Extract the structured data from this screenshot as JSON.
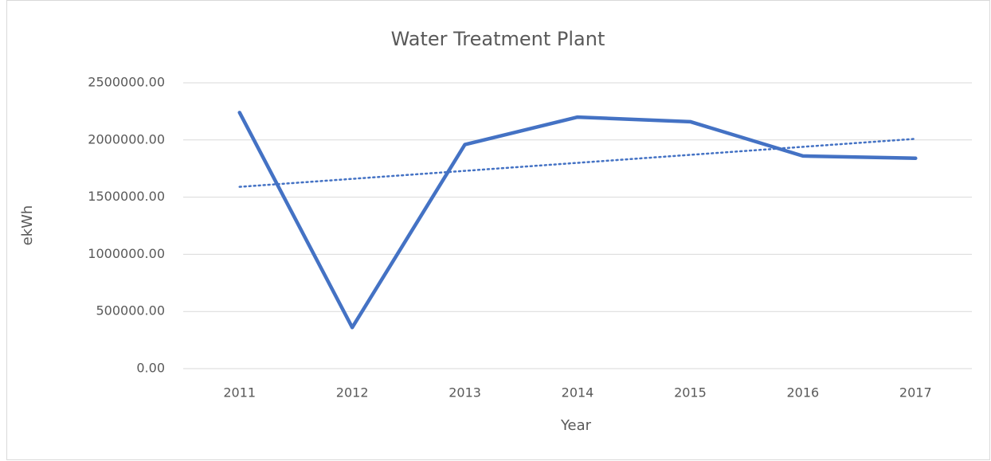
{
  "chart_data": {
    "type": "line",
    "title": "Water Treatment Plant",
    "x_label": "Year",
    "y_label": "ekWh",
    "categories": [
      "2011",
      "2012",
      "2013",
      "2014",
      "2015",
      "2016",
      "2017"
    ],
    "series": [
      {
        "name": "ekWh",
        "color": "#4472c4",
        "dash": "solid",
        "values": [
          2240000,
          360000,
          1960000,
          2200000,
          2160000,
          1860000,
          1840000
        ]
      },
      {
        "color": "#4472c4",
        "dash": "dotted",
        "values": [
          1590000,
          1660000,
          1730000,
          1800000,
          1870000,
          1940000,
          2010000
        ]
      }
    ],
    "ylim": [
      0,
      2500000
    ],
    "yticks": [
      {
        "value": 0,
        "label": "0.00"
      },
      {
        "value": 500000,
        "label": "500000.00"
      },
      {
        "value": 1000000,
        "label": "1000000.00"
      },
      {
        "value": 1500000,
        "label": "1500000.00"
      },
      {
        "value": 2000000,
        "label": "2000000.00"
      },
      {
        "value": 2500000,
        "label": "2500000.00"
      }
    ],
    "grid": true,
    "legend": false
  }
}
